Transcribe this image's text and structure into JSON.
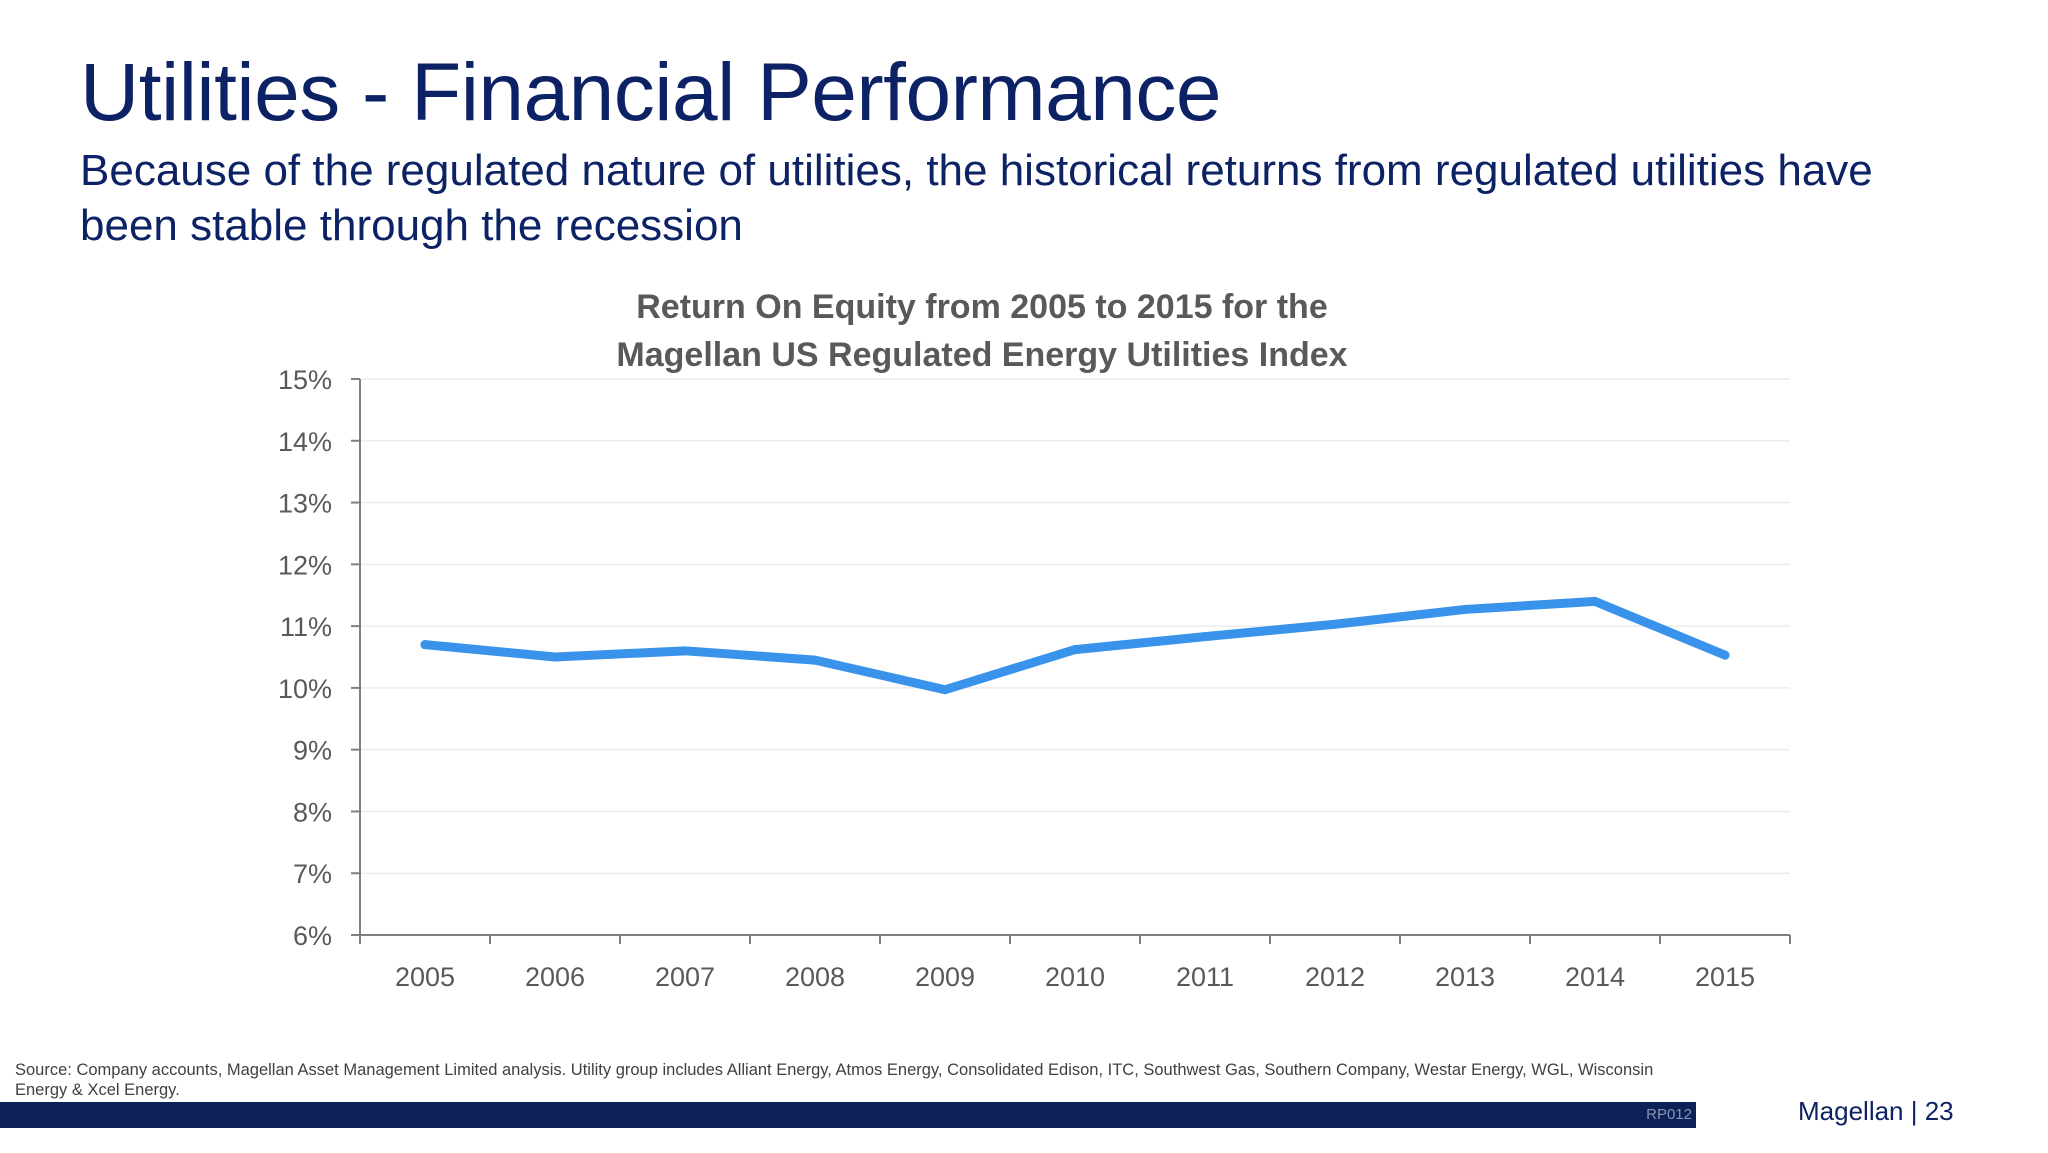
{
  "slide": {
    "title": "Utilities - Financial Performance",
    "subtitle": "Because of the regulated nature of utilities, the historical returns from regulated utilities have been stable through the recession",
    "footnote": "Source: Company accounts, Magellan Asset Management Limited analysis.  Utility group includes Alliant Energy, Atmos Energy, Consolidated Edison, ITC, Southwest Gas, Southern Company, Westar Energy, WGL, Wisconsin Energy & Xcel Energy.",
    "footer_code": "RP012",
    "page_label": "Magellan | 23"
  },
  "chart_data": {
    "type": "line",
    "title": [
      "Return On Equity from 2005 to 2015 for the",
      "Magellan US Regulated Energy Utilities Index"
    ],
    "categories": [
      "2005",
      "2006",
      "2007",
      "2008",
      "2009",
      "2010",
      "2011",
      "2012",
      "2013",
      "2014",
      "2015"
    ],
    "series": [
      {
        "values": [
          10.7,
          10.5,
          10.6,
          10.45,
          9.97,
          10.62,
          10.83,
          11.03,
          11.27,
          11.4,
          10.53
        ],
        "color": "#3a93ea"
      }
    ],
    "ylim": [
      6,
      15
    ],
    "ytick_step": 1,
    "ytick_format": "percent",
    "grid": true,
    "legend": "none",
    "colors": {
      "axis": "#7f7f7f",
      "gridline": "#ececec",
      "tick_label": "#595959",
      "title": "#595959"
    }
  }
}
